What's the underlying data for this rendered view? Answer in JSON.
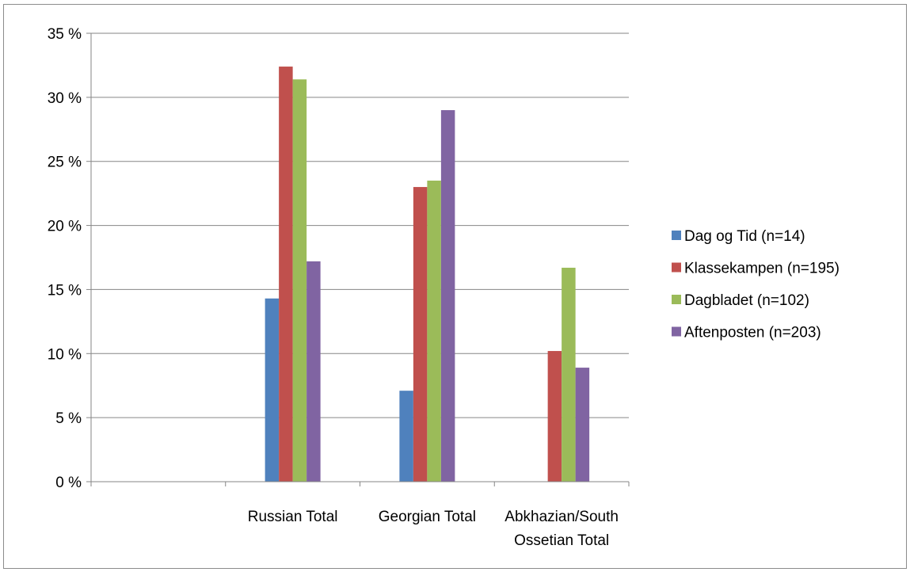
{
  "chart_data": {
    "type": "bar",
    "categories": [
      "",
      "Russian Total",
      "Georgian Total",
      "Abkhazian/South Ossetian Total"
    ],
    "category_label_lines": [
      [],
      [
        "Russian Total"
      ],
      [
        "Georgian Total"
      ],
      [
        "Abkhazian/South",
        "Ossetian Total"
      ]
    ],
    "series": [
      {
        "name": "Dag og Tid (n=14)",
        "color": "#4f81bd",
        "values": [
          null,
          14.3,
          7.1,
          null
        ]
      },
      {
        "name": "Klassekampen (n=195)",
        "color": "#c0504d",
        "values": [
          null,
          32.4,
          23.0,
          10.2
        ]
      },
      {
        "name": "Dagbladet (n=102)",
        "color": "#9bbb59",
        "values": [
          null,
          31.4,
          23.5,
          16.7
        ]
      },
      {
        "name": "Aftenposten (n=203)",
        "color": "#8064a2",
        "values": [
          null,
          17.2,
          29.0,
          8.9
        ]
      }
    ],
    "ylim": [
      0,
      35
    ],
    "yticks": [
      0,
      5,
      10,
      15,
      20,
      25,
      30,
      35
    ],
    "ytick_labels": [
      "0 %",
      "5 %",
      "10 %",
      "15 %",
      "20 %",
      "25 %",
      "30 %",
      "35 %"
    ],
    "grid": true,
    "legend_position": "right",
    "title": "",
    "xlabel": "",
    "ylabel": ""
  }
}
